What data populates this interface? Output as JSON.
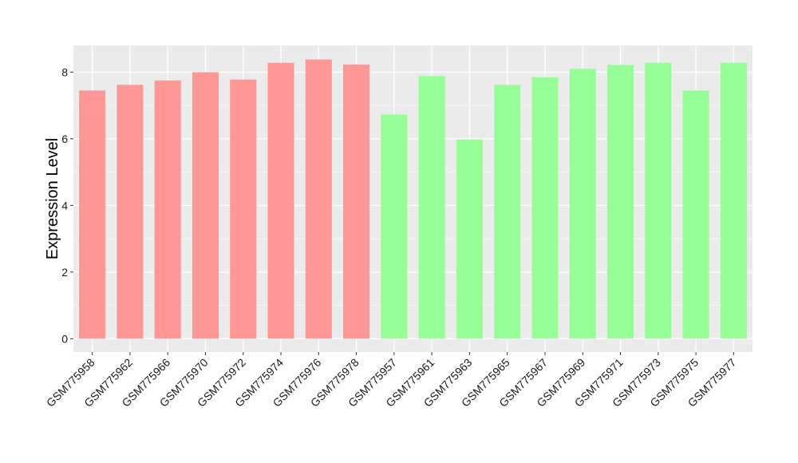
{
  "chart_data": {
    "type": "bar",
    "ylabel": "Expression Level",
    "ylim": [
      -0.4,
      8.8
    ],
    "y_ticks": [
      0,
      2,
      4,
      6,
      8
    ],
    "grid": true,
    "background_color": "#ebebeb",
    "categories": [
      "GSM775958",
      "GSM775962",
      "GSM775966",
      "GSM775970",
      "GSM775972",
      "GSM775974",
      "GSM775976",
      "GSM775978",
      "GSM775957",
      "GSM775961",
      "GSM775963",
      "GSM775965",
      "GSM775967",
      "GSM775969",
      "GSM775971",
      "GSM775973",
      "GSM775975",
      "GSM775977"
    ],
    "values": [
      7.45,
      7.62,
      7.75,
      8.0,
      7.78,
      8.28,
      8.38,
      8.23,
      6.73,
      7.88,
      5.98,
      7.62,
      7.85,
      8.1,
      8.22,
      8.28,
      7.45,
      8.28
    ],
    "bar_colors": [
      "#ff9896",
      "#ff9896",
      "#ff9896",
      "#ff9896",
      "#ff9896",
      "#ff9896",
      "#ff9896",
      "#ff9896",
      "#98ff98",
      "#98ff98",
      "#98ff98",
      "#98ff98",
      "#98ff98",
      "#98ff98",
      "#98ff98",
      "#98ff98",
      "#98ff98",
      "#98ff98"
    ]
  }
}
